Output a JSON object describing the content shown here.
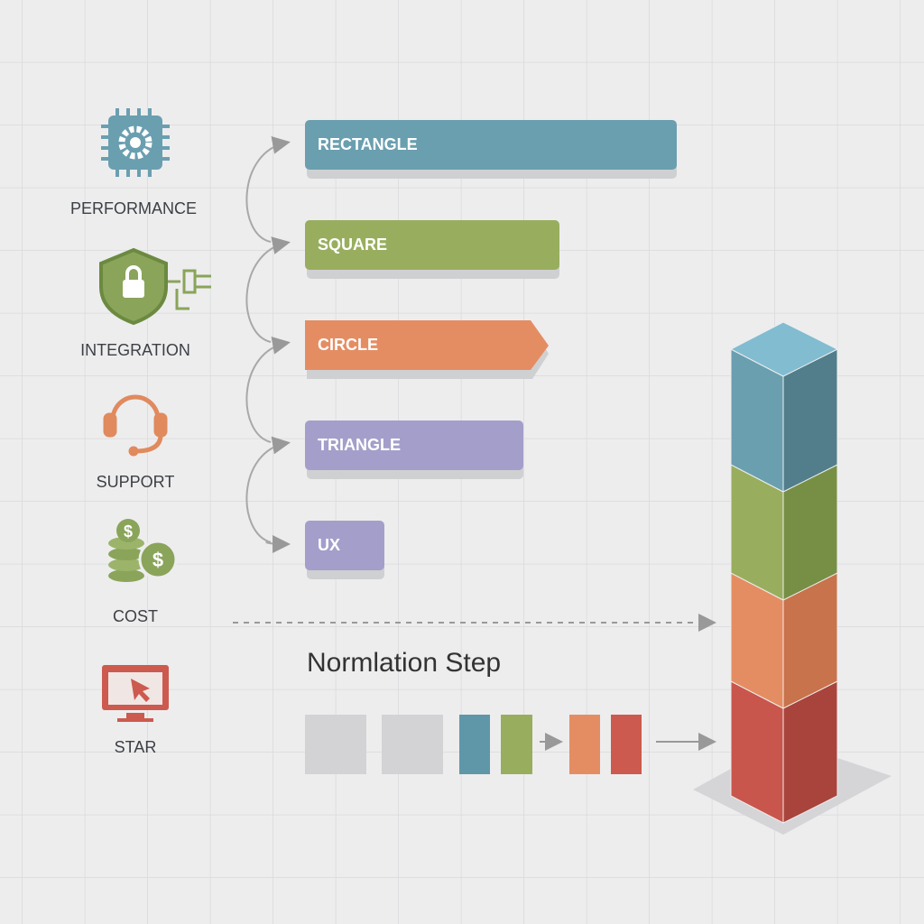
{
  "icons": [
    {
      "label": "PERFORMANCE"
    },
    {
      "label": "INTEGRATION"
    },
    {
      "label": "SUPPORT"
    },
    {
      "label": "COST"
    },
    {
      "label": "STAR"
    }
  ],
  "bars": [
    {
      "label": "RECTANGLE"
    },
    {
      "label": "SQUARE"
    },
    {
      "label": "CIRCLE"
    },
    {
      "label": "TRIANGLE"
    },
    {
      "label": "UX"
    }
  ],
  "step": {
    "title": "Normlation Step"
  }
}
